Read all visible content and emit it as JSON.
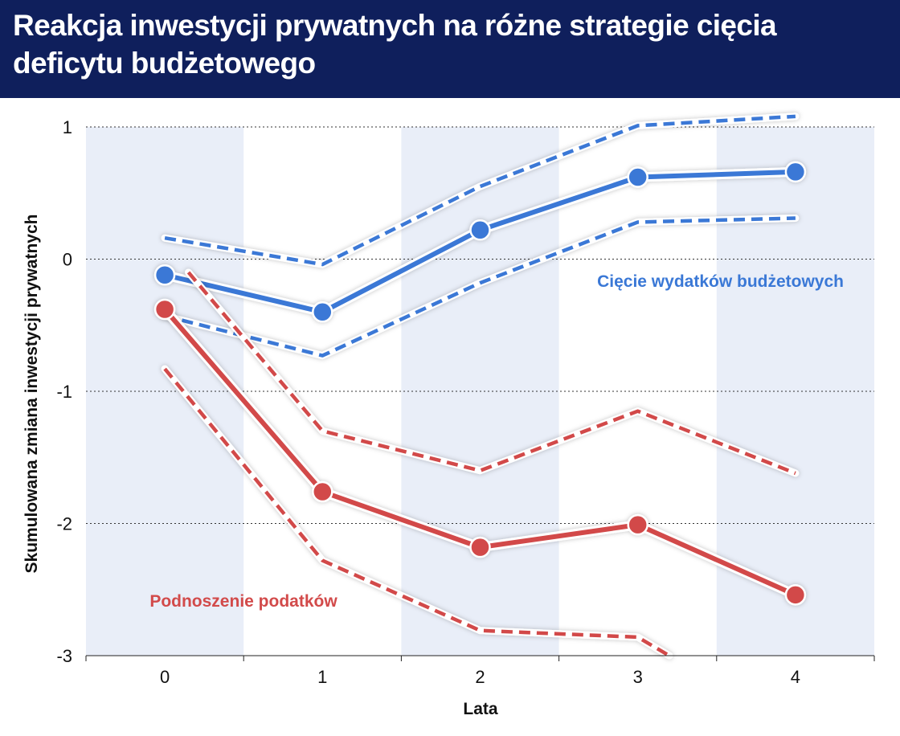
{
  "header": {
    "title": "Reakcja inwestycji prywatnych na różne strategie cięcia deficytu budżetowego"
  },
  "colors": {
    "header_bg": "#0f1f5c",
    "band": "#e9eef8",
    "blue": "#3a78d6",
    "red": "#d24a4a"
  },
  "chart_data": {
    "type": "line",
    "title": "Reakcja inwestycji prywatnych na różne strategie cięcia deficytu budżetowego",
    "xlabel": "Lata",
    "ylabel": "Skumulowana zmiana inwestycji prywatnych",
    "x": [
      0,
      1,
      2,
      3,
      4
    ],
    "xlim": [
      -0.5,
      4.5
    ],
    "ylim": [
      -3,
      1
    ],
    "yticks": [
      1,
      0,
      -1,
      -2,
      -3
    ],
    "xticks": [
      0,
      1,
      2,
      3,
      4
    ],
    "grid": "horizontal dotted",
    "series": [
      {
        "name": "Cięcie wydatków budżetowych",
        "color": "#3a78d6",
        "values": [
          -0.12,
          -0.4,
          0.22,
          0.62,
          0.66
        ],
        "upper": [
          0.16,
          -0.04,
          0.55,
          1.01,
          1.08
        ],
        "lower": [
          -0.43,
          -0.73,
          -0.18,
          0.28,
          0.31
        ]
      },
      {
        "name": "Podnoszenie podatków",
        "color": "#d24a4a",
        "values": [
          -0.38,
          -1.76,
          -2.18,
          -2.01,
          -2.54
        ],
        "upper_x": [
          0.15,
          1,
          2,
          3,
          4
        ],
        "upper": [
          -0.1,
          -1.3,
          -1.6,
          -1.15,
          -1.62
        ],
        "lower_x": [
          0,
          1,
          2,
          3,
          3.2
        ],
        "lower": [
          -0.83,
          -2.28,
          -2.81,
          -2.86,
          -3.0
        ]
      }
    ],
    "annotations": [
      {
        "text": "Cięcie wydatków budżetowych",
        "series": 0
      },
      {
        "text": "Podnoszenie podatków",
        "series": 1
      }
    ]
  }
}
